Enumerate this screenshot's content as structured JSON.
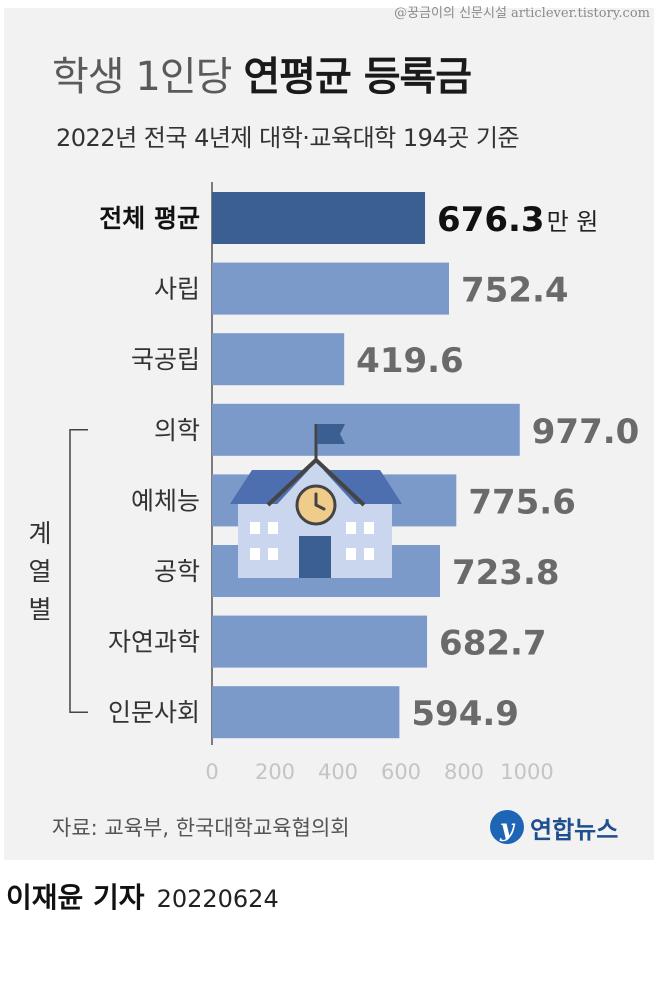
{
  "watermark": "@꿍금이의 신문시설 articlever.tistory.com",
  "title": {
    "light": "학생 1인당",
    "bold": "연평균 등록금"
  },
  "subtitle": "2022년 전국 4년제 대학·교육대학 194곳 기준",
  "source": "자료: 교육부, 한국대학교육협의회",
  "logo": {
    "mark": "y",
    "text": "연합뉴스"
  },
  "byline": {
    "name": "이재윤 기자",
    "date": "20220624"
  },
  "colors": {
    "highlight": "#3c5f91",
    "bar": "#7b9ac9",
    "background": "#f2f2f2",
    "school_wall": "#c9d6ee",
    "school_roof": "#4d6fb0",
    "school_door": "#3c5f91",
    "clock": "#f0cc8a"
  },
  "icons": {
    "school": "school-building-icon",
    "flag": "flag-icon",
    "clock": "clock-icon"
  },
  "chart_data": {
    "type": "bar",
    "orientation": "horizontal",
    "categories": [
      "전체 평균",
      "사립",
      "국공립",
      "의학",
      "예체능",
      "공학",
      "자연과학",
      "인문사회"
    ],
    "values": [
      676.3,
      752.4,
      419.6,
      977.0,
      775.6,
      723.8,
      682.7,
      594.9
    ],
    "value_labels": [
      "676.3",
      "752.4",
      "419.6",
      "977.0",
      "775.6",
      "723.8",
      "682.7",
      "594.9"
    ],
    "highlight_index": 0,
    "unit_label": "만 원",
    "xlim": [
      0,
      1000
    ],
    "x_ticks": [
      "0",
      "200",
      "400",
      "600",
      "800",
      "1000"
    ],
    "group": {
      "label": [
        "계",
        "열",
        "별"
      ],
      "from_index": 3,
      "to_index": 7
    },
    "grid": false
  }
}
